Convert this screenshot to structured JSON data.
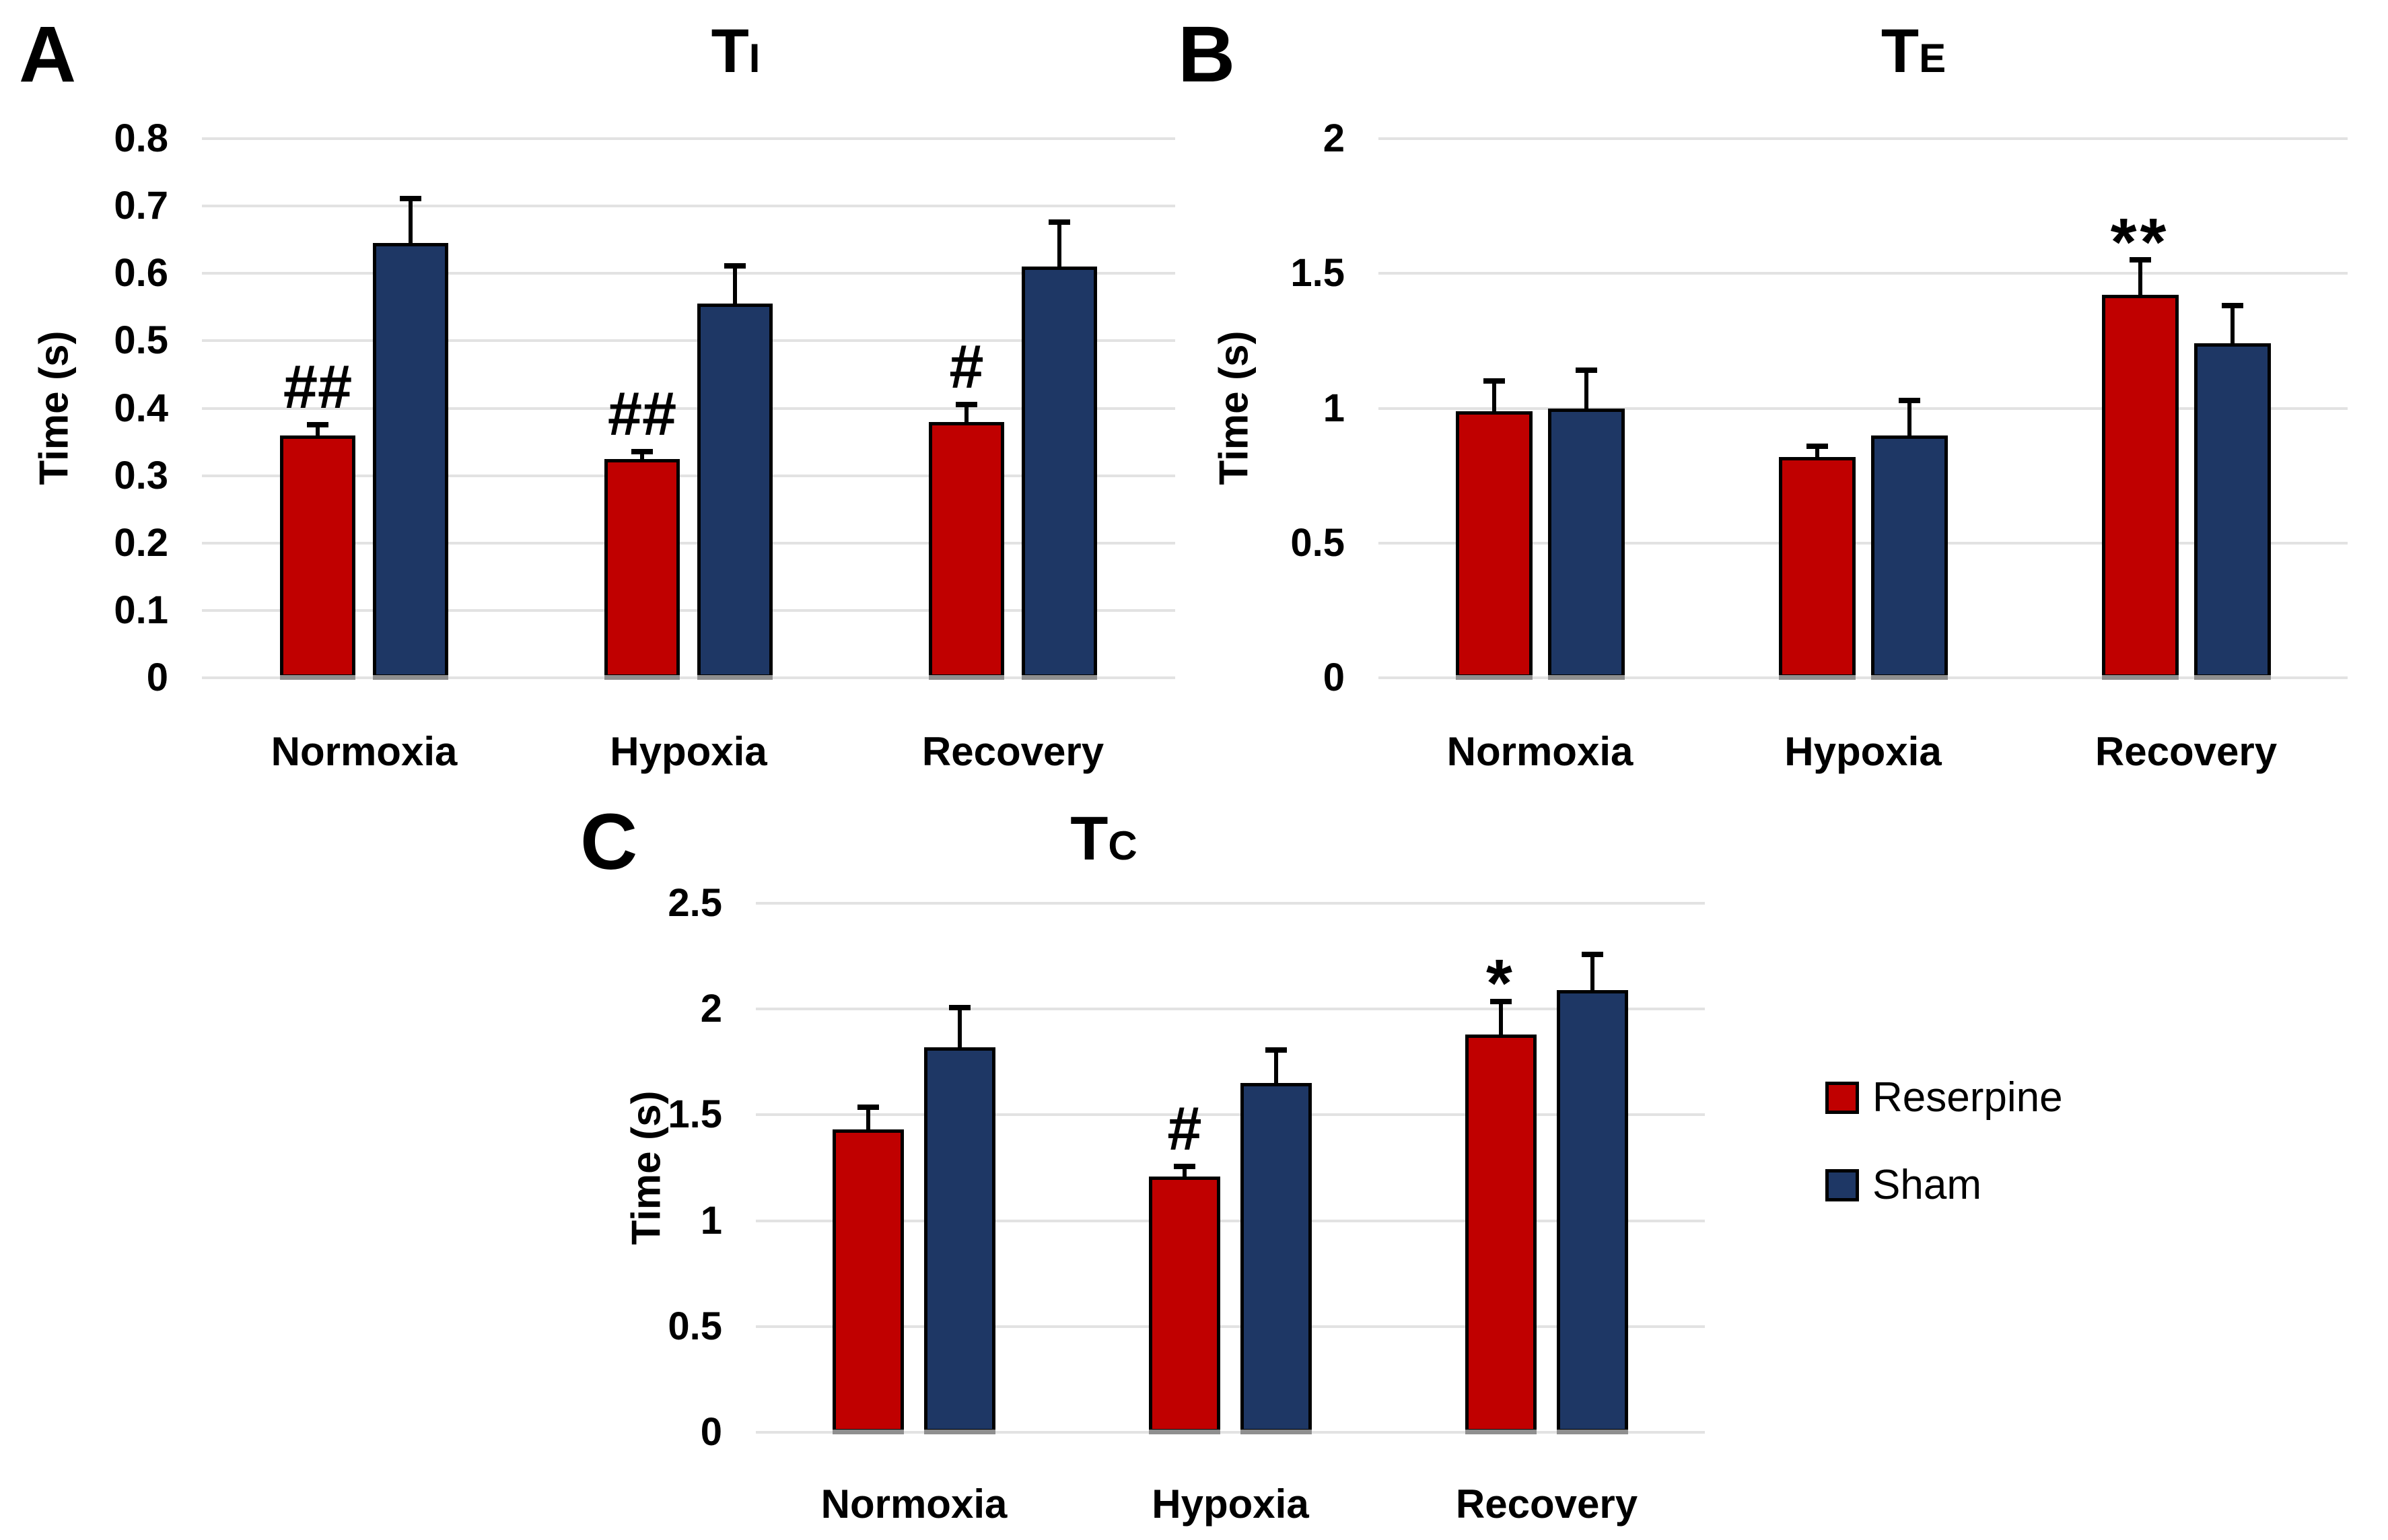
{
  "figure": {
    "background": "#FFFFFF",
    "grid_color": "#E2E2E2",
    "bar_outline_color": "#000000"
  },
  "legend": {
    "position": "right-of-panel-C",
    "items": [
      {
        "label": "Reserpine",
        "color": "#C00000"
      },
      {
        "label": "Sham",
        "color": "#1E3765"
      }
    ]
  },
  "chart_data": [
    {
      "id": "A",
      "panel_label": "A",
      "type": "bar",
      "title": {
        "main": "T",
        "sub": "I"
      },
      "ylabel": "Time (s)",
      "xlabel": "",
      "ymax": 0.8,
      "ylim": [
        0,
        0.8
      ],
      "grid": true,
      "ytick_labels": [
        "0.8",
        "0.7",
        "0.6",
        "0.5",
        "0.4",
        "0.3",
        "0.2",
        "0.1",
        "0"
      ],
      "ytick_values": [
        0.8,
        0.7,
        0.6,
        0.5,
        0.4,
        0.3,
        0.2,
        0.1,
        0
      ],
      "categories": [
        "Normoxia",
        "Hypoxia",
        "Recovery"
      ],
      "series": [
        {
          "name": "Reserpine",
          "color": "#C00000",
          "values": [
            0.36,
            0.325,
            0.38
          ],
          "errors": [
            0.02,
            0.015,
            0.03
          ]
        },
        {
          "name": "Sham",
          "color": "#1E3765",
          "values": [
            0.645,
            0.555,
            0.61
          ],
          "errors": [
            0.07,
            0.06,
            0.07
          ]
        }
      ],
      "annotations": [
        {
          "category": "Normoxia",
          "series": "Reserpine",
          "text": "##"
        },
        {
          "category": "Hypoxia",
          "series": "Reserpine",
          "text": "##"
        },
        {
          "category": "Recovery",
          "series": "Reserpine",
          "text": "#"
        }
      ]
    },
    {
      "id": "B",
      "panel_label": "B",
      "type": "bar",
      "title": {
        "main": "T",
        "sub": "E"
      },
      "ylabel": "Time (s)",
      "xlabel": "",
      "ymax": 2,
      "ylim": [
        0,
        2
      ],
      "grid": true,
      "ytick_labels": [
        "2",
        "1.5",
        "1",
        "0.5",
        "0"
      ],
      "ytick_values": [
        2,
        1.5,
        1,
        0.5,
        0
      ],
      "categories": [
        "Normoxia",
        "Hypoxia",
        "Recovery"
      ],
      "series": [
        {
          "name": "Reserpine",
          "color": "#C00000",
          "values": [
            0.99,
            0.82,
            1.42
          ],
          "errors": [
            0.12,
            0.05,
            0.14
          ]
        },
        {
          "name": "Sham",
          "color": "#1E3765",
          "values": [
            1.0,
            0.9,
            1.24
          ],
          "errors": [
            0.15,
            0.14,
            0.15
          ]
        }
      ],
      "annotations": [
        {
          "category": "Recovery",
          "series": "Reserpine",
          "text": "**"
        }
      ]
    },
    {
      "id": "C",
      "panel_label": "C",
      "type": "bar",
      "title": {
        "main": "T",
        "sub": "C"
      },
      "ylabel": "Time (s)",
      "xlabel": "",
      "ymax": 2.5,
      "ylim": [
        0,
        2.5
      ],
      "grid": true,
      "ytick_labels": [
        "2.5",
        "2",
        "1.5",
        "1",
        "0.5",
        "0"
      ],
      "ytick_values": [
        2.5,
        2,
        1.5,
        1,
        0.5,
        0
      ],
      "categories": [
        "Normoxia",
        "Hypoxia",
        "Recovery"
      ],
      "series": [
        {
          "name": "Reserpine",
          "color": "#C00000",
          "values": [
            1.43,
            1.21,
            1.88
          ],
          "errors": [
            0.12,
            0.06,
            0.17
          ]
        },
        {
          "name": "Sham",
          "color": "#1E3765",
          "values": [
            1.82,
            1.65,
            2.09
          ],
          "errors": [
            0.2,
            0.17,
            0.18
          ]
        }
      ],
      "annotations": [
        {
          "category": "Hypoxia",
          "series": "Reserpine",
          "text": "#"
        },
        {
          "category": "Recovery",
          "series": "Reserpine",
          "text": "*"
        }
      ]
    }
  ]
}
